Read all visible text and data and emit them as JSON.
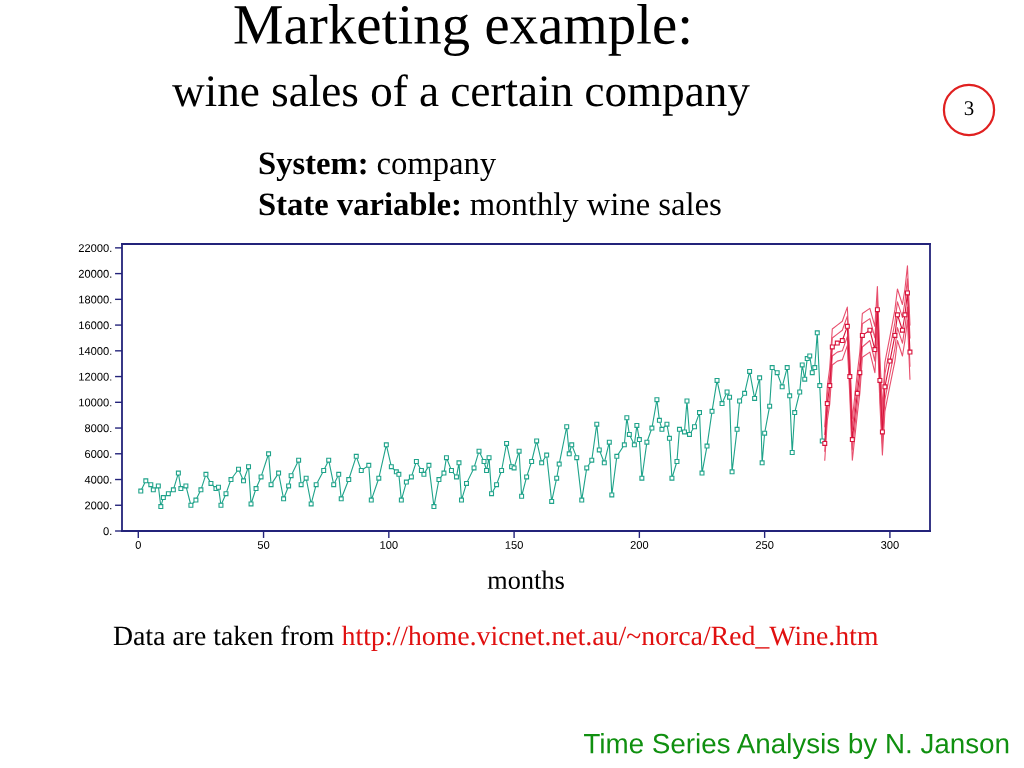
{
  "chart_data": {
    "type": "line",
    "title": "Marketing example:",
    "subtitle": "wine sales of a certain company",
    "xlabel": "months",
    "annotations": [
      "3",
      "System: company",
      "State variable: monthly wine sales",
      "Data are taken from http://home.vicnet.net.au/~norca/Red_Wine.htm",
      "Time Series Analysis by N. Janson"
    ],
    "series": [
      {
        "color": "#1fa38a",
        "marker": "square",
        "x": [
          1,
          3,
          5,
          6,
          8,
          9,
          10,
          12,
          14,
          16,
          17,
          19,
          21,
          23,
          25,
          27,
          29,
          31,
          32,
          33,
          35,
          37,
          40,
          42,
          44,
          45,
          47,
          49,
          52,
          53,
          56,
          58,
          60,
          61,
          64,
          65,
          67,
          69,
          71,
          74,
          76,
          78,
          80,
          81,
          84,
          87,
          89,
          92,
          93,
          96,
          99,
          101,
          103,
          104,
          105,
          107,
          109,
          111,
          113,
          114,
          116,
          118,
          120,
          122,
          123,
          125,
          127,
          128,
          129,
          131,
          134,
          136,
          138,
          139,
          140,
          141,
          143,
          145,
          147,
          149,
          150,
          152,
          153,
          155,
          157,
          159,
          161,
          163,
          165,
          167,
          168,
          171,
          172,
          173,
          175,
          177,
          179,
          181,
          183,
          184,
          186,
          188,
          189,
          191,
          194,
          195,
          196,
          198,
          199,
          200,
          201,
          203,
          205,
          207,
          208,
          209,
          211,
          212,
          213,
          215,
          216,
          218,
          219,
          220,
          222,
          224,
          225,
          227,
          229,
          231,
          233,
          235,
          236,
          237,
          239,
          240,
          242,
          244,
          246,
          248,
          249,
          250,
          252,
          253,
          255,
          257,
          259,
          260,
          261,
          262,
          264,
          265,
          266,
          267,
          268,
          269,
          270,
          271,
          272,
          273
        ],
        "values": [
          3100,
          3900,
          3600,
          3200,
          3500,
          1900,
          2600,
          2900,
          3200,
          4500,
          3300,
          3500,
          2000,
          2400,
          3200,
          4400,
          3700,
          3300,
          3400,
          2000,
          2900,
          4000,
          4800,
          3900,
          5000,
          2100,
          3300,
          4200,
          6000,
          3600,
          4500,
          2500,
          3500,
          4300,
          5500,
          3600,
          4100,
          2100,
          3600,
          4700,
          5500,
          3600,
          4400,
          2500,
          4000,
          5800,
          4700,
          5100,
          2400,
          4100,
          6700,
          5000,
          4600,
          4400,
          2400,
          3800,
          4200,
          5400,
          4700,
          4400,
          5100,
          1900,
          4000,
          4500,
          5700,
          4700,
          4200,
          5300,
          2400,
          3700,
          4900,
          6200,
          5400,
          4700,
          5700,
          2900,
          3600,
          4700,
          6800,
          5000,
          4900,
          6200,
          2700,
          4200,
          5400,
          7000,
          5300,
          5900,
          2300,
          4100,
          5200,
          8100,
          6000,
          6700,
          5700,
          2400,
          4900,
          5500,
          8300,
          6300,
          5300,
          6900,
          2800,
          5800,
          6700,
          8800,
          7500,
          6700,
          8200,
          7100,
          4100,
          6900,
          8000,
          10200,
          8600,
          7900,
          8300,
          7200,
          4100,
          5400,
          7900,
          7700,
          10100,
          7500,
          8100,
          9200,
          4500,
          6600,
          9300,
          11700,
          9900,
          10800,
          10400,
          4600,
          7900,
          10100,
          10700,
          12400,
          10300,
          11900,
          5300,
          7600,
          9700,
          12700,
          12300,
          11200,
          12700,
          10500,
          6100,
          9200,
          10800,
          12900,
          11800,
          13400,
          13600,
          12300,
          12700,
          15400,
          11300,
          7000
        ]
      },
      {
        "color": "#e8506e",
        "marker": "none",
        "x": [
          274,
          275,
          276,
          277,
          279,
          281,
          283,
          284,
          285,
          287,
          288,
          289,
          292,
          294,
          295,
          296,
          297,
          298,
          300,
          302,
          303,
          305,
          306,
          307,
          308
        ],
        "values": [
          8100,
          11200,
          12700,
          15700,
          16000,
          16300,
          17400,
          13500,
          8700,
          12300,
          13900,
          16900,
          17300,
          15900,
          19000,
          13500,
          9500,
          13100,
          15100,
          17200,
          18800,
          17600,
          18800,
          20600,
          16000
        ]
      },
      {
        "color": "#e8506e",
        "marker": "none",
        "x": [
          274,
          275,
          276,
          277,
          279,
          281,
          283,
          284,
          285,
          287,
          288,
          289,
          292,
          294,
          295,
          296,
          297,
          298,
          300,
          302,
          303,
          305,
          306,
          307,
          308
        ],
        "values": [
          7500,
          10600,
          12000,
          15000,
          15300,
          15600,
          16700,
          12800,
          7900,
          11500,
          13100,
          16100,
          16500,
          15000,
          18100,
          12600,
          8600,
          12200,
          14200,
          16200,
          17800,
          16600,
          17800,
          19600,
          15000
        ]
      },
      {
        "color": "#e8506e",
        "marker": "none",
        "x": [
          274,
          275,
          276,
          277,
          279,
          281,
          283,
          284,
          285,
          287,
          288,
          289,
          292,
          294,
          295,
          296,
          297,
          298,
          300,
          302,
          303,
          305,
          306,
          307,
          308
        ],
        "values": [
          6200,
          9200,
          10600,
          13600,
          13900,
          14000,
          15100,
          11200,
          6300,
          9900,
          11500,
          14300,
          14800,
          13200,
          16300,
          10800,
          6800,
          10200,
          12200,
          14200,
          15800,
          14600,
          15800,
          17400,
          12800
        ]
      },
      {
        "color": "#e8506e",
        "marker": "none",
        "x": [
          274,
          275,
          276,
          277,
          279,
          281,
          283,
          284,
          285,
          287,
          288,
          289,
          292,
          294,
          295,
          296,
          297,
          298,
          300,
          302,
          303,
          305,
          306,
          307,
          308
        ],
        "values": [
          5500,
          8600,
          9900,
          12900,
          13200,
          13300,
          14400,
          10500,
          5500,
          9100,
          10700,
          13500,
          13900,
          12300,
          15400,
          9900,
          5900,
          9300,
          11300,
          13200,
          14800,
          13600,
          14800,
          16400,
          11800
        ]
      },
      {
        "color": "#d8143c",
        "marker": "square",
        "x": [
          274,
          275,
          276,
          277,
          279,
          281,
          283,
          284,
          285,
          287,
          288,
          289,
          292,
          294,
          295,
          296,
          297,
          298,
          300,
          302,
          303,
          305,
          306,
          307,
          308
        ],
        "values": [
          6800,
          9900,
          11300,
          14300,
          14600,
          14800,
          15900,
          12000,
          7100,
          10700,
          12300,
          15200,
          15600,
          14100,
          17200,
          11700,
          7700,
          11200,
          13200,
          15200,
          16800,
          15600,
          16800,
          18500,
          13900
        ]
      }
    ],
    "xlim": [
      -6.5,
      316
    ],
    "xticks": [
      0,
      50,
      100,
      150,
      200,
      250,
      300
    ],
    "ylim": [
      0,
      22300
    ],
    "yticks": [
      {
        "value": 0,
        "label": "0."
      },
      {
        "value": 2000,
        "label": "2000."
      },
      {
        "value": 4000,
        "label": "4000."
      },
      {
        "value": 6000,
        "label": "6000."
      },
      {
        "value": 8000,
        "label": "8000."
      },
      {
        "value": 10000,
        "label": "10000."
      },
      {
        "value": 12000,
        "label": "12000."
      },
      {
        "value": 14000,
        "label": "14000."
      },
      {
        "value": 16000,
        "label": "16000."
      },
      {
        "value": 18000,
        "label": "18000."
      },
      {
        "value": 20000,
        "label": "20000."
      },
      {
        "value": 22000,
        "label": "22000."
      }
    ],
    "grid": false
  }
}
